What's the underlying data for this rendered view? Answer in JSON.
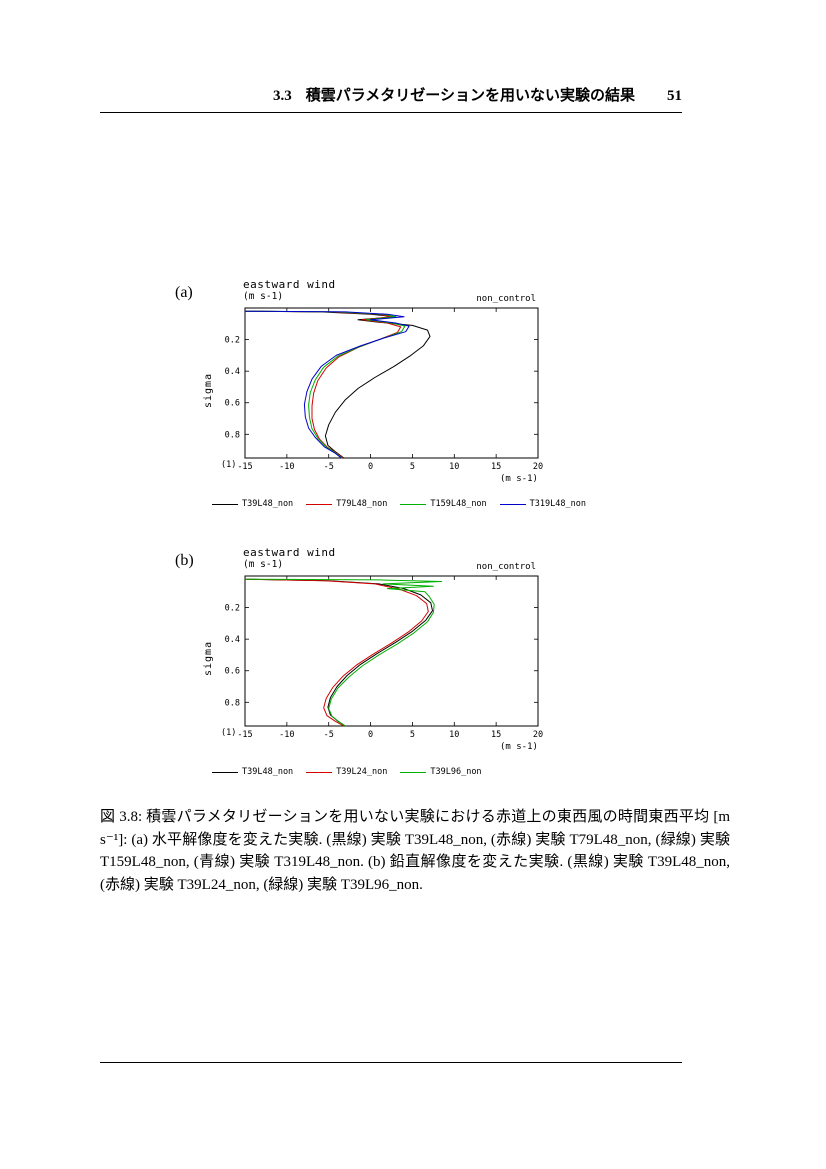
{
  "header": {
    "section": "3.3",
    "title": "積雲パラメタリゼーションを用いない実験の結果",
    "page_number": "51"
  },
  "caption": {
    "text": "図 3.8: 積雲パラメタリゼーションを用いない実験における赤道上の東西風の時間東西平均 [m s⁻¹]: (a) 水平解像度を変えた実験. (黒線) 実験 T39L48_non, (赤線) 実験 T79L48_non, (緑線) 実験 T159L48_non, (青線) 実験 T319L48_non. (b) 鉛直解像度を変えた実験. (黒線) 実験 T39L48_non, (赤線) 実験 T39L24_non, (緑線) 実験 T39L96_non."
  },
  "colors": {
    "black": "#000000",
    "red": "#d40000",
    "green": "#00b000",
    "blue": "#0000cc"
  },
  "chart_data": [
    {
      "id": "a",
      "type": "line",
      "panel_label": "(a)",
      "title": "eastward wind",
      "subtitle": "(m s-1)",
      "annotation": "non_control",
      "xlabel": "(m s-1)",
      "ylabel": "sigma",
      "corner_label": "(1)",
      "xlim": [
        -15,
        20
      ],
      "ylim": [
        0,
        0.95
      ],
      "y_inverted": true,
      "xticks": [
        -15,
        -10,
        -5,
        0,
        5,
        10,
        15,
        20
      ],
      "yticks": [
        0.2,
        0.4,
        0.6,
        0.8
      ],
      "legend_position": "bottom",
      "series": [
        {
          "name": "T39L48_non",
          "color": "#000000",
          "points": [
            [
              -15,
              0.02
            ],
            [
              -6,
              0.025
            ],
            [
              0,
              0.04
            ],
            [
              3,
              0.055
            ],
            [
              -1.5,
              0.075
            ],
            [
              1,
              0.09
            ],
            [
              5,
              0.11
            ],
            [
              6.8,
              0.14
            ],
            [
              7.1,
              0.18
            ],
            [
              6.3,
              0.24
            ],
            [
              4.8,
              0.3
            ],
            [
              2.8,
              0.37
            ],
            [
              0.5,
              0.44
            ],
            [
              -1.5,
              0.51
            ],
            [
              -3,
              0.58
            ],
            [
              -4.2,
              0.66
            ],
            [
              -5,
              0.74
            ],
            [
              -5.4,
              0.81
            ],
            [
              -5.1,
              0.87
            ],
            [
              -4.2,
              0.91
            ],
            [
              -3.2,
              0.95
            ]
          ]
        },
        {
          "name": "T79L48_non",
          "color": "#d40000",
          "points": [
            [
              -15,
              0.02
            ],
            [
              -5,
              0.025
            ],
            [
              1,
              0.04
            ],
            [
              2.5,
              0.055
            ],
            [
              -1,
              0.075
            ],
            [
              2,
              0.095
            ],
            [
              3.6,
              0.12
            ],
            [
              3.2,
              0.155
            ],
            [
              1,
              0.2
            ],
            [
              -1.5,
              0.25
            ],
            [
              -3.8,
              0.31
            ],
            [
              -5.3,
              0.38
            ],
            [
              -6.3,
              0.46
            ],
            [
              -6.8,
              0.54
            ],
            [
              -7,
              0.62
            ],
            [
              -7,
              0.7
            ],
            [
              -6.7,
              0.77
            ],
            [
              -6.1,
              0.83
            ],
            [
              -5.2,
              0.88
            ],
            [
              -4,
              0.92
            ],
            [
              -3.3,
              0.95
            ]
          ]
        },
        {
          "name": "T159L48_non",
          "color": "#00b000",
          "points": [
            [
              -15,
              0.02
            ],
            [
              -4,
              0.025
            ],
            [
              1.5,
              0.04
            ],
            [
              3,
              0.055
            ],
            [
              -0.5,
              0.075
            ],
            [
              2.5,
              0.095
            ],
            [
              4.1,
              0.115
            ],
            [
              3.7,
              0.15
            ],
            [
              1.3,
              0.195
            ],
            [
              -1.3,
              0.245
            ],
            [
              -3.9,
              0.305
            ],
            [
              -5.6,
              0.375
            ],
            [
              -6.6,
              0.455
            ],
            [
              -7.2,
              0.535
            ],
            [
              -7.4,
              0.615
            ],
            [
              -7.3,
              0.695
            ],
            [
              -7,
              0.765
            ],
            [
              -6.3,
              0.825
            ],
            [
              -5.3,
              0.88
            ],
            [
              -4.1,
              0.92
            ],
            [
              -3.4,
              0.95
            ]
          ]
        },
        {
          "name": "T319L48_non",
          "color": "#0000cc",
          "points": [
            [
              -15,
              0.02
            ],
            [
              -3,
              0.025
            ],
            [
              2,
              0.04
            ],
            [
              4,
              0.055
            ],
            [
              0,
              0.075
            ],
            [
              3,
              0.095
            ],
            [
              4.6,
              0.115
            ],
            [
              4.2,
              0.15
            ],
            [
              1.6,
              0.19
            ],
            [
              -1.2,
              0.24
            ],
            [
              -4.1,
              0.3
            ],
            [
              -5.9,
              0.37
            ],
            [
              -7,
              0.45
            ],
            [
              -7.6,
              0.53
            ],
            [
              -7.9,
              0.61
            ],
            [
              -7.8,
              0.69
            ],
            [
              -7.4,
              0.76
            ],
            [
              -6.6,
              0.82
            ],
            [
              -5.5,
              0.88
            ],
            [
              -4.2,
              0.92
            ],
            [
              -3.5,
              0.95
            ]
          ]
        }
      ]
    },
    {
      "id": "b",
      "type": "line",
      "panel_label": "(b)",
      "title": "eastward wind",
      "subtitle": "(m s-1)",
      "annotation": "non_control",
      "xlabel": "(m s-1)",
      "ylabel": "sigma",
      "corner_label": "(1)",
      "xlim": [
        -15,
        20
      ],
      "ylim": [
        0,
        0.95
      ],
      "y_inverted": true,
      "xticks": [
        -15,
        -10,
        -5,
        0,
        5,
        10,
        15,
        20
      ],
      "yticks": [
        0.2,
        0.4,
        0.6,
        0.8
      ],
      "legend_position": "bottom",
      "series": [
        {
          "name": "T39L48_non",
          "color": "#000000",
          "points": [
            [
              -15,
              0.02
            ],
            [
              -5,
              0.03
            ],
            [
              1,
              0.05
            ],
            [
              4,
              0.08
            ],
            [
              6,
              0.12
            ],
            [
              7.2,
              0.17
            ],
            [
              7.4,
              0.22
            ],
            [
              6.6,
              0.28
            ],
            [
              5,
              0.35
            ],
            [
              3,
              0.42
            ],
            [
              0.8,
              0.49
            ],
            [
              -1.2,
              0.56
            ],
            [
              -2.8,
              0.63
            ],
            [
              -4,
              0.7
            ],
            [
              -4.8,
              0.77
            ],
            [
              -5.1,
              0.83
            ],
            [
              -4.8,
              0.88
            ],
            [
              -3.9,
              0.92
            ],
            [
              -3,
              0.95
            ]
          ]
        },
        {
          "name": "T39L24_non",
          "color": "#d40000",
          "points": [
            [
              -15,
              0.02
            ],
            [
              -5.5,
              0.03
            ],
            [
              0.5,
              0.05
            ],
            [
              3.5,
              0.085
            ],
            [
              5.5,
              0.125
            ],
            [
              6.7,
              0.175
            ],
            [
              6.9,
              0.225
            ],
            [
              6.1,
              0.285
            ],
            [
              4.5,
              0.355
            ],
            [
              2.5,
              0.425
            ],
            [
              0.3,
              0.495
            ],
            [
              -1.7,
              0.565
            ],
            [
              -3.3,
              0.635
            ],
            [
              -4.5,
              0.705
            ],
            [
              -5.3,
              0.775
            ],
            [
              -5.6,
              0.835
            ],
            [
              -5.2,
              0.885
            ],
            [
              -4.2,
              0.92
            ],
            [
              -3.2,
              0.95
            ]
          ]
        },
        {
          "name": "T39L96_non",
          "color": "#00b000",
          "points": [
            [
              -15,
              0.02
            ],
            [
              1,
              0.025
            ],
            [
              8.5,
              0.035
            ],
            [
              1.5,
              0.05
            ],
            [
              7.5,
              0.065
            ],
            [
              2,
              0.08
            ],
            [
              6.5,
              0.1
            ],
            [
              7,
              0.13
            ],
            [
              7.6,
              0.18
            ],
            [
              7.5,
              0.23
            ],
            [
              6.8,
              0.29
            ],
            [
              5.2,
              0.36
            ],
            [
              3.2,
              0.43
            ],
            [
              1,
              0.5
            ],
            [
              -1,
              0.57
            ],
            [
              -2.6,
              0.64
            ],
            [
              -3.9,
              0.71
            ],
            [
              -4.7,
              0.78
            ],
            [
              -5,
              0.84
            ],
            [
              -4.6,
              0.89
            ],
            [
              -3.6,
              0.93
            ],
            [
              -3,
              0.95
            ]
          ]
        }
      ]
    }
  ]
}
